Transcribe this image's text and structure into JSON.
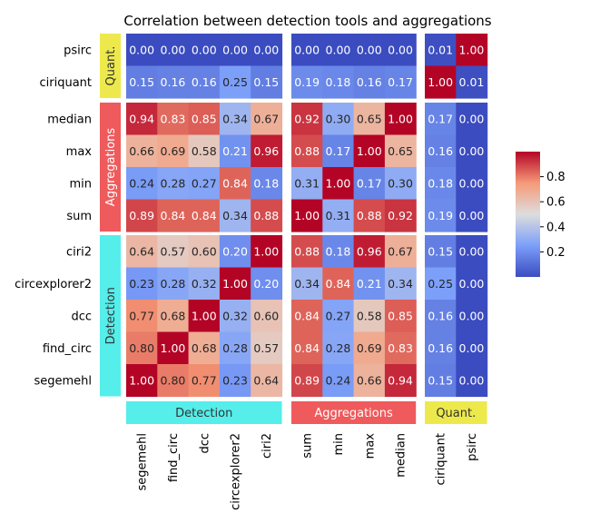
{
  "chart_data": {
    "type": "heatmap",
    "title": "Correlation between detection tools and aggregations",
    "rows": [
      "psirc",
      "ciriquant",
      "median",
      "max",
      "min",
      "sum",
      "ciri2",
      "circexplorer2",
      "dcc",
      "find_circ",
      "segemehl"
    ],
    "columns": [
      "segemehl",
      "find_circ",
      "dcc",
      "circexplorer2",
      "ciri2",
      "sum",
      "min",
      "max",
      "median",
      "ciriquant",
      "psirc"
    ],
    "values": [
      [
        0.0,
        0.0,
        0.0,
        0.0,
        0.0,
        0.0,
        0.0,
        0.0,
        0.0,
        0.01,
        1.0
      ],
      [
        0.15,
        0.16,
        0.16,
        0.25,
        0.15,
        0.19,
        0.18,
        0.16,
        0.17,
        1.0,
        0.01
      ],
      [
        0.94,
        0.83,
        0.85,
        0.34,
        0.67,
        0.92,
        0.3,
        0.65,
        1.0,
        0.17,
        0.0
      ],
      [
        0.66,
        0.69,
        0.58,
        0.21,
        0.96,
        0.88,
        0.17,
        1.0,
        0.65,
        0.16,
        0.0
      ],
      [
        0.24,
        0.28,
        0.27,
        0.84,
        0.18,
        0.31,
        1.0,
        0.17,
        0.3,
        0.18,
        0.0
      ],
      [
        0.89,
        0.84,
        0.84,
        0.34,
        0.88,
        1.0,
        0.31,
        0.88,
        0.92,
        0.19,
        0.0
      ],
      [
        0.64,
        0.57,
        0.6,
        0.2,
        1.0,
        0.88,
        0.18,
        0.96,
        0.67,
        0.15,
        0.0
      ],
      [
        0.23,
        0.28,
        0.32,
        1.0,
        0.2,
        0.34,
        0.84,
        0.21,
        0.34,
        0.25,
        0.0
      ],
      [
        0.77,
        0.68,
        1.0,
        0.32,
        0.6,
        0.84,
        0.27,
        0.58,
        0.85,
        0.16,
        0.0
      ],
      [
        0.8,
        1.0,
        0.68,
        0.28,
        0.57,
        0.84,
        0.28,
        0.69,
        0.83,
        0.16,
        0.0
      ],
      [
        1.0,
        0.8,
        0.77,
        0.23,
        0.64,
        0.89,
        0.24,
        0.66,
        0.94,
        0.15,
        0.0
      ]
    ],
    "row_groups": [
      {
        "label": "Quant.",
        "color": "#ede94d",
        "text_color": "#333333",
        "count": 2
      },
      {
        "label": "Aggregations",
        "color": "#ef5a5c",
        "text_color": "#ffffff",
        "count": 4
      },
      {
        "label": "Detection",
        "color": "#55eeea",
        "text_color": "#333333",
        "count": 5
      }
    ],
    "column_groups": [
      {
        "label": "Detection",
        "color": "#55eeea",
        "text_color": "#333333",
        "count": 5
      },
      {
        "label": "Aggregations",
        "color": "#ef5a5c",
        "text_color": "#ffffff",
        "count": 4
      },
      {
        "label": "Quant.",
        "color": "#ede94d",
        "text_color": "#333333",
        "count": 2
      }
    ],
    "colormap": "coolwarm",
    "colorbar": {
      "range": [
        0.0,
        1.0
      ],
      "ticks": [
        0.2,
        0.4,
        0.6,
        0.8
      ]
    },
    "value_format": "2 decimals"
  }
}
